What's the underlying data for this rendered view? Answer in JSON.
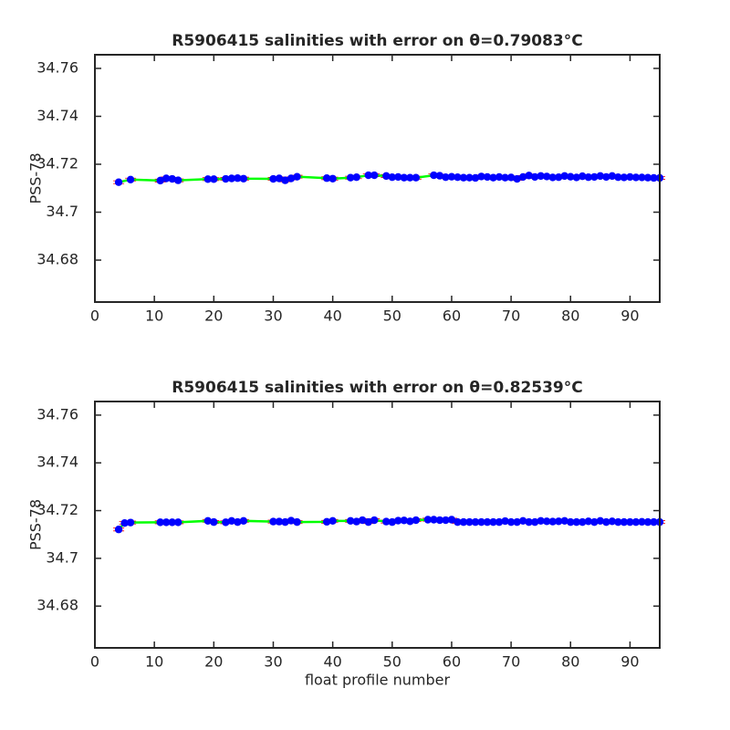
{
  "chart_data": [
    {
      "type": "line",
      "title": "R5906415 salinities with error on θ=0.79083°C",
      "ylabel": "PSS-78",
      "x": [
        4,
        6,
        11,
        12,
        13,
        14,
        19,
        20,
        22,
        23,
        24,
        25,
        30,
        31,
        32,
        33,
        34,
        39,
        40,
        43,
        44,
        46,
        47,
        49,
        50,
        51,
        52,
        53,
        54,
        57,
        58,
        59,
        60,
        61,
        62,
        63,
        64,
        65,
        66,
        67,
        68,
        69,
        70,
        71,
        72,
        73,
        74,
        75,
        76,
        77,
        78,
        79,
        80,
        81,
        82,
        83,
        84,
        85,
        86,
        87,
        88,
        89,
        90,
        91,
        92,
        93,
        94,
        95
      ],
      "values": [
        34.7125,
        34.7136,
        34.7132,
        34.7141,
        34.7139,
        34.7133,
        34.7138,
        34.7138,
        34.7139,
        34.7141,
        34.7142,
        34.714,
        34.7139,
        34.7141,
        34.7133,
        34.7141,
        34.7148,
        34.7142,
        34.714,
        34.7144,
        34.7146,
        34.7154,
        34.7154,
        34.7151,
        34.7146,
        34.7147,
        34.7144,
        34.7144,
        34.7144,
        34.7154,
        34.7152,
        34.7146,
        34.7148,
        34.7146,
        34.7144,
        34.7144,
        34.7143,
        34.7149,
        34.7147,
        34.7144,
        34.7147,
        34.7144,
        34.7145,
        34.7139,
        34.7147,
        34.7153,
        34.7147,
        34.7151,
        34.7149,
        34.7145,
        34.7146,
        34.7151,
        34.7148,
        34.7145,
        34.715,
        34.7146,
        34.7147,
        34.7151,
        34.7147,
        34.7151,
        34.7146,
        34.7145,
        34.7147,
        34.7145,
        34.7145,
        34.7144,
        34.7143,
        34.7143
      ],
      "error": 0.0006,
      "line_color": "#00ff00",
      "marker_color": "#0000ff",
      "error_color": "#ff0000",
      "xlim": [
        0,
        95
      ],
      "xticks": [
        0,
        10,
        20,
        30,
        40,
        50,
        60,
        70,
        80,
        90
      ],
      "ylim": [
        34.6625,
        34.7657
      ],
      "yticks": [
        34.68,
        34.7,
        34.72,
        34.74,
        34.76
      ]
    },
    {
      "type": "line",
      "title": "R5906415 salinities with error on θ=0.82539°C",
      "ylabel": "PSS-78",
      "xlabel": "float profile number",
      "x": [
        4,
        5,
        6,
        11,
        12,
        13,
        14,
        19,
        20,
        22,
        23,
        24,
        25,
        30,
        31,
        32,
        33,
        34,
        39,
        40,
        43,
        44,
        45,
        46,
        47,
        49,
        50,
        51,
        52,
        53,
        54,
        56,
        57,
        58,
        59,
        60,
        61,
        62,
        63,
        64,
        65,
        66,
        67,
        68,
        69,
        70,
        71,
        72,
        73,
        74,
        75,
        76,
        77,
        78,
        79,
        80,
        81,
        82,
        83,
        84,
        85,
        86,
        87,
        88,
        89,
        90,
        91,
        92,
        93,
        94,
        95
      ],
      "values": [
        34.7121,
        34.7148,
        34.715,
        34.7151,
        34.7151,
        34.7151,
        34.7151,
        34.7157,
        34.7152,
        34.7151,
        34.7157,
        34.7152,
        34.7157,
        34.7154,
        34.7154,
        34.7152,
        34.7158,
        34.7152,
        34.7153,
        34.7157,
        34.7157,
        34.7154,
        34.716,
        34.7152,
        34.716,
        34.7154,
        34.7152,
        34.7158,
        34.7159,
        34.7155,
        34.716,
        34.7162,
        34.7162,
        34.716,
        34.716,
        34.7162,
        34.7152,
        34.7152,
        34.7152,
        34.7152,
        34.7152,
        34.7152,
        34.7152,
        34.7152,
        34.7156,
        34.7152,
        34.7152,
        34.7157,
        34.7152,
        34.7152,
        34.7157,
        34.7155,
        34.7154,
        34.7155,
        34.7157,
        34.7152,
        34.7152,
        34.7152,
        34.7155,
        34.7152,
        34.7157,
        34.7152,
        34.7155,
        34.7152,
        34.7152,
        34.7152,
        34.7152,
        34.7153,
        34.7152,
        34.7152,
        34.7152
      ],
      "error": 0.0006,
      "line_color": "#00ff00",
      "marker_color": "#0000ff",
      "error_color": "#ff0000",
      "xlim": [
        0,
        95
      ],
      "xticks": [
        0,
        10,
        20,
        30,
        40,
        50,
        60,
        70,
        80,
        90
      ],
      "ylim": [
        34.6625,
        34.7657
      ],
      "yticks": [
        34.68,
        34.7,
        34.72,
        34.74,
        34.76
      ]
    }
  ]
}
